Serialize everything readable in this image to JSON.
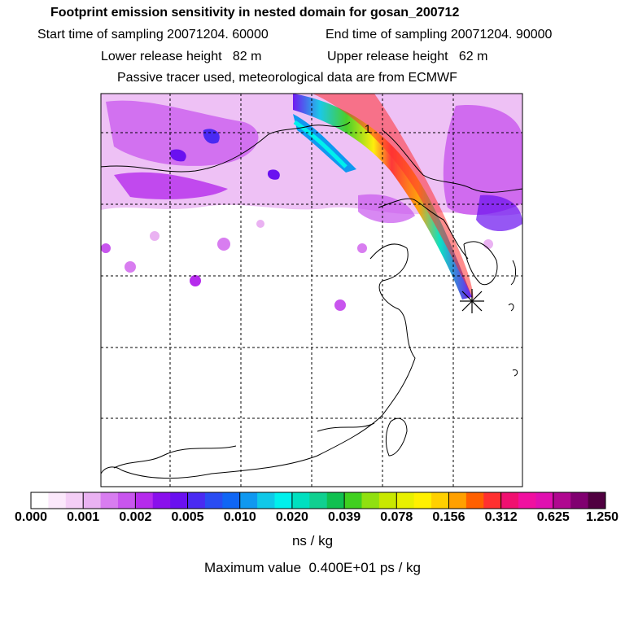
{
  "header": {
    "title": "Footprint emission sensitivity in nested domain for gosan_200712",
    "start_label": "Start time of sampling 20071204. 60000",
    "end_label": "End time of sampling 20071204. 90000",
    "lower_label": "Lower release height   82 m",
    "upper_label": "Upper release height   62 m",
    "tracer_note": "Passive tracer used, meteorological data are from ECMWF"
  },
  "map": {
    "contour_label": "1",
    "receptor_marker": "star"
  },
  "colorbar": {
    "colors": [
      "#ffffff",
      "#fbe8fb",
      "#f4cef6",
      "#eab2f2",
      "#d87df0",
      "#c855ee",
      "#b52bec",
      "#8a10ec",
      "#6a10f0",
      "#4a2af2",
      "#2a4cf2",
      "#1066f4",
      "#1098f0",
      "#10c8e8",
      "#00f0ec",
      "#00e0c0",
      "#10d090",
      "#10c050",
      "#40d020",
      "#90e010",
      "#c8e800",
      "#e8f000",
      "#fff000",
      "#ffd000",
      "#ffa000",
      "#ff6000",
      "#ff3030",
      "#f01070",
      "#f010a0",
      "#e010b0",
      "#b00890",
      "#800070",
      "#500040"
    ],
    "tick_labels": [
      "0.000",
      "0.001",
      "0.002",
      "0.005",
      "0.010",
      "0.020",
      "0.039",
      "0.078",
      "0.156",
      "0.312",
      "0.625",
      "1.250"
    ]
  },
  "units": "ns / kg",
  "max_value": "Maximum value  0.400E+01 ps / kg"
}
